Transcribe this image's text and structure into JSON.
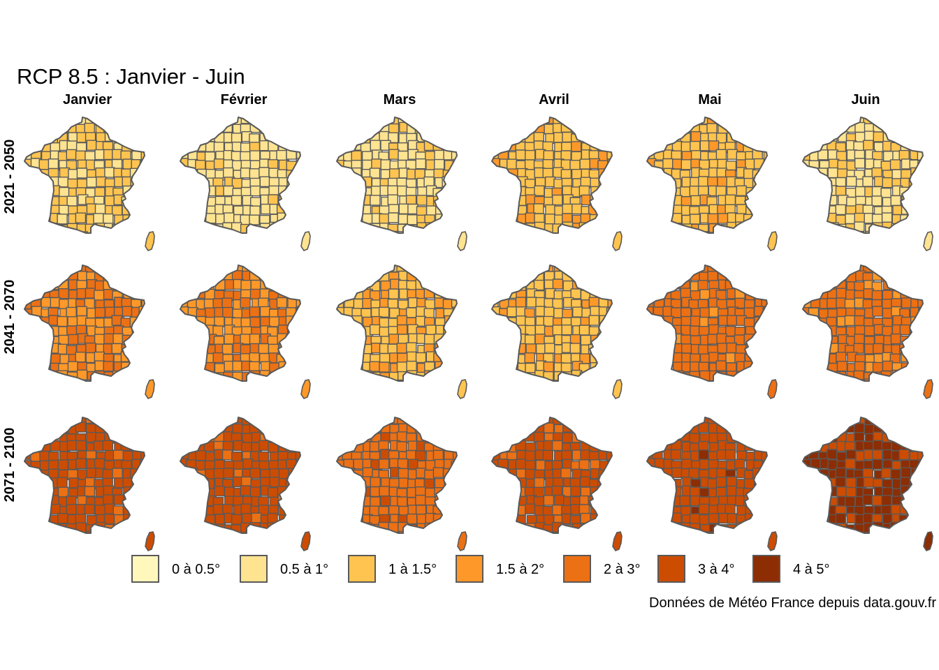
{
  "title": "RCP 8.5 : Janvier - Juin",
  "caption": "Données de Météo France depuis data.gouv.fr",
  "months": [
    "Janvier",
    "Février",
    "Mars",
    "Avril",
    "Mai",
    "Juin"
  ],
  "periods": [
    "2021 - 2050",
    "2041 - 2070",
    "2071 - 2100"
  ],
  "legend": [
    {
      "label": "0 à 0.5°",
      "color": "#FFF7BC"
    },
    {
      "label": "0.5 à 1°",
      "color": "#FEE391"
    },
    {
      "label": "1 à 1.5°",
      "color": "#FEC44F"
    },
    {
      "label": "1.5 à 2°",
      "color": "#FE9929"
    },
    {
      "label": "2 à 3°",
      "color": "#EC7014"
    },
    {
      "label": "3 à 4°",
      "color": "#CC4C02"
    },
    {
      "label": "4 à 5°",
      "color": "#8C2D04"
    }
  ],
  "border_color": "#595959",
  "map_classes": [
    [
      {
        "base": 2,
        "other": 1,
        "blend": 0.35
      },
      {
        "base": 1,
        "other": 2,
        "blend": 0.15
      },
      {
        "base": 1,
        "other": 2,
        "blend": 0.3
      },
      {
        "base": 2,
        "other": 3,
        "blend": 0.15
      },
      {
        "base": 2,
        "other": 3,
        "blend": 0.15
      },
      {
        "base": 1,
        "other": 2,
        "blend": 0.25
      }
    ],
    [
      {
        "base": 3,
        "other": 4,
        "blend": 0.4
      },
      {
        "base": 3,
        "other": 4,
        "blend": 0.4
      },
      {
        "base": 2,
        "other": 3,
        "blend": 0.3
      },
      {
        "base": 2,
        "other": 3,
        "blend": 0.2
      },
      {
        "base": 4,
        "other": 3,
        "blend": 0.1
      },
      {
        "base": 4,
        "other": 3,
        "blend": 0.1
      }
    ],
    [
      {
        "base": 5,
        "other": 4,
        "blend": 0.1
      },
      {
        "base": 5,
        "other": 4,
        "blend": 0.1
      },
      {
        "base": 4,
        "other": 5,
        "blend": 0.15
      },
      {
        "base": 5,
        "other": 4,
        "blend": 0.25
      },
      {
        "base": 5,
        "other": 6,
        "blend": 0.05
      },
      {
        "base": 6,
        "other": 5,
        "blend": 0.3
      }
    ]
  ]
}
